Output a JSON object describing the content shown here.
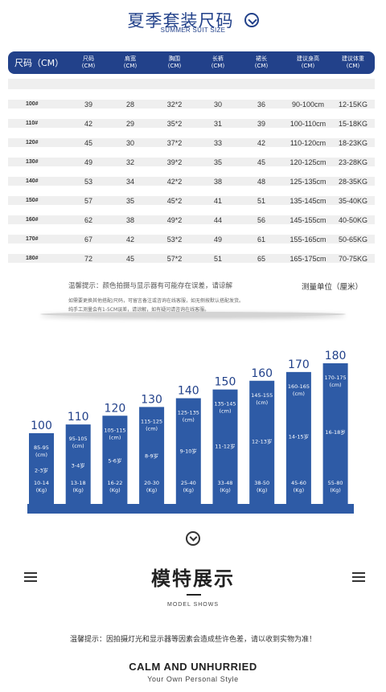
{
  "header": {
    "title_cn": "夏季套装尺码",
    "title_en": "SUMMER SUIT SIZE",
    "title_icon": "chevron-down-circle-icon"
  },
  "size_table": {
    "headers": [
      "尺码（CM）",
      "尺码\n(CM)",
      "肩宽\n(CM)",
      "胸围\n(CM)",
      "长裤\n(CM)",
      "裙长\n(CM)",
      "建议身高\n(CM)",
      "建议体重\n(CM)"
    ],
    "rows": [
      [
        "100#",
        "39",
        "28",
        "32*2",
        "30",
        "36",
        "90-100cm",
        "12-15KG"
      ],
      [
        "110#",
        "42",
        "29",
        "35*2",
        "31",
        "39",
        "100-110cm",
        "15-18KG"
      ],
      [
        "120#",
        "45",
        "30",
        "37*2",
        "33",
        "42",
        "110-120cm",
        "18-23KG"
      ],
      [
        "130#",
        "49",
        "32",
        "39*2",
        "35",
        "45",
        "120-125cm",
        "23-28KG"
      ],
      [
        "140#",
        "53",
        "34",
        "42*2",
        "38",
        "48",
        "125-135cm",
        "28-35KG"
      ],
      [
        "150#",
        "57",
        "35",
        "45*2",
        "41",
        "51",
        "135-145cm",
        "35-40KG"
      ],
      [
        "160#",
        "62",
        "38",
        "49*2",
        "44",
        "56",
        "145-155cm",
        "40-50KG"
      ],
      [
        "170#",
        "67",
        "42",
        "53*2",
        "49",
        "61",
        "155-165cm",
        "50-65KG"
      ],
      [
        "180#",
        "72",
        "45",
        "57*2",
        "51",
        "65",
        "165-175cm",
        "70-75KG"
      ]
    ],
    "tip_1": "温馨提示：颜色拍摄与显示器有可能存在误差，请谅解",
    "tip_2": "如需要更换其他搭配/尺码，可留言备注或咨询在线客服，如无侧按默认搭配发货。",
    "tip_3": "纯手工测量会有1-5CM误差，请谅解，如有疑问请咨询在线客服。",
    "unit_label": "测量单位（厘米）"
  },
  "chart_data": {
    "type": "bar",
    "categories": [
      "100",
      "110",
      "120",
      "130",
      "140",
      "150",
      "160",
      "170",
      "180"
    ],
    "values": [
      100,
      110,
      120,
      130,
      140,
      150,
      160,
      170,
      180
    ],
    "height_ranges": [
      "85-95\n(cm)",
      "95-105\n(cm)",
      "105-115\n(cm)",
      "115-125\n(cm)",
      "125-135\n(cm)",
      "135-145\n(cm)",
      "145-155\n(cm)",
      "160-165\n(cm)",
      "170-175\n(cm)"
    ],
    "ages": [
      "2-3岁",
      "3-4岁",
      "5-6岁",
      "8-9岁",
      "9-10岁",
      "11-12岁",
      "12-13岁",
      "14-15岁",
      "16-18岁"
    ],
    "weights": [
      "10-14\n(Kg)",
      "13-18\n(Kg)",
      "16-22\n(Kg)",
      "20-30\n(Kg)",
      "25-40\n(Kg)",
      "33-48\n(Kg)",
      "38-50\n(Kg)",
      "45-60\n(Kg)",
      "55-80\n(Kg)"
    ],
    "bar_color": "#2e5ba6",
    "label_color": "#22418a",
    "xlabel": "",
    "ylabel": "",
    "grid": false
  },
  "models": {
    "divider_icon": "chevron-down-circle-icon",
    "menu_icon": "menu-icon",
    "title_cn": "模特展示",
    "title_en": "MODEL SHOWS",
    "notice": "温馨提示：因拍摄灯光和显示器等因素会造成些许色差，请以收到实物为准！",
    "slogan": "CALM AND UNHURRIED",
    "slogan_sub": "Your Own Personal Style"
  },
  "colors": {
    "primary": "#22418a",
    "bar": "#2e5ba6",
    "row_bg": "#efefef"
  }
}
